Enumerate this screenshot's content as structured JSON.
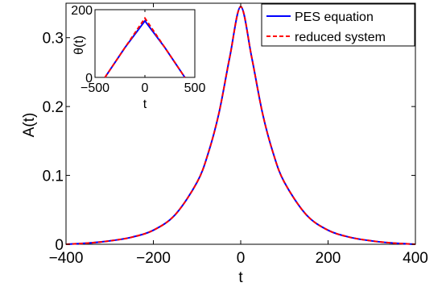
{
  "chart_data": [
    {
      "type": "line",
      "xlabel": "t",
      "ylabel": "A(t)",
      "xlim": [
        -400,
        400
      ],
      "ylim": [
        0,
        0.35
      ],
      "xticks": [
        "−400",
        "−200",
        "0",
        "200",
        "400"
      ],
      "yticks": [
        "0",
        "0.1",
        "0.2",
        "0.3"
      ],
      "grid": false,
      "legend_position": "top-right",
      "x": [
        -400,
        -350,
        -300,
        -250,
        -200,
        -150,
        -100,
        -75,
        -50,
        -25,
        0,
        25,
        50,
        75,
        100,
        150,
        200,
        250,
        300,
        350,
        400
      ],
      "series": [
        {
          "name": "PES equation",
          "color": "#0000ff",
          "style": "solid",
          "values": [
            0.0,
            0.0017,
            0.0049,
            0.0102,
            0.0204,
            0.043,
            0.09,
            0.131,
            0.19,
            0.272,
            0.345,
            0.272,
            0.19,
            0.131,
            0.09,
            0.043,
            0.0204,
            0.0102,
            0.0049,
            0.0017,
            0.0
          ]
        },
        {
          "name": "reduced system",
          "color": "#ff0000",
          "style": "dashed",
          "values": [
            0.0,
            0.0017,
            0.0049,
            0.0102,
            0.0204,
            0.043,
            0.09,
            0.131,
            0.19,
            0.272,
            0.345,
            0.272,
            0.19,
            0.131,
            0.09,
            0.043,
            0.0204,
            0.0102,
            0.0049,
            0.0017,
            0.0
          ]
        }
      ]
    },
    {
      "type": "line",
      "xlabel": "t",
      "ylabel": "θ(t)",
      "xlim": [
        -500,
        500
      ],
      "ylim": [
        0,
        200
      ],
      "xticks": [
        "−500",
        "0",
        "500"
      ],
      "yticks": [
        "0",
        "200"
      ],
      "x": [
        -400,
        -200,
        0,
        200,
        400
      ],
      "series": [
        {
          "color": "#0000ff",
          "style": "solid",
          "values": [
            0,
            88,
            167,
            88,
            0
          ]
        },
        {
          "color": "#ff0000",
          "style": "dashed",
          "values": [
            0,
            88,
            175,
            88,
            0
          ]
        }
      ]
    }
  ]
}
